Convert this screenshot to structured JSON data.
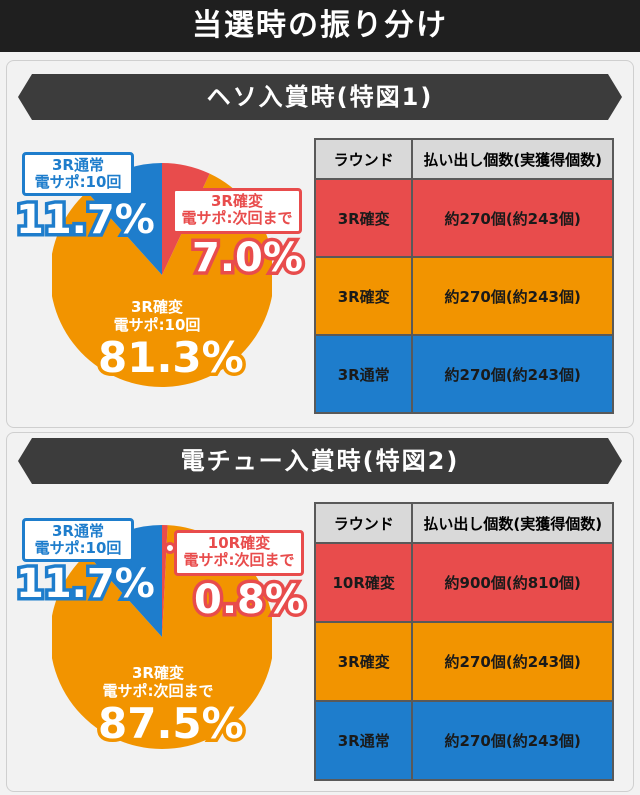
{
  "title": "当選時の振り分け",
  "colors": {
    "blue": "#1e7dcc",
    "red": "#e84c4c",
    "orange": "#f29400"
  },
  "sections": [
    {
      "heading": "ヘソ入賞時(特図1)",
      "chart_data": {
        "type": "pie",
        "slices": [
          {
            "label_line1": "3R通常",
            "label_line2": "電サポ:10回",
            "value": 11.7,
            "value_label": "11.7%",
            "color": "#1e7dcc"
          },
          {
            "label_line1": "3R確変",
            "label_line2": "電サポ:次回まで",
            "value": 7.0,
            "value_label": "7.0%",
            "color": "#e84c4c"
          },
          {
            "label_line1": "3R確変",
            "label_line2": "電サポ:10回",
            "value": 81.3,
            "value_label": "81.3%",
            "color": "#f29400"
          }
        ]
      },
      "table": {
        "headers": [
          "ラウンド",
          "払い出し個数(実獲得個数)"
        ],
        "rows": [
          {
            "round": "3R確変",
            "payout": "約270個(約243個)",
            "color": "#e84c4c"
          },
          {
            "round": "3R確変",
            "payout": "約270個(約243個)",
            "color": "#f29400"
          },
          {
            "round": "3R通常",
            "payout": "約270個(約243個)",
            "color": "#1e7dcc"
          }
        ]
      }
    },
    {
      "heading": "電チュー入賞時(特図2)",
      "chart_data": {
        "type": "pie",
        "slices": [
          {
            "label_line1": "3R通常",
            "label_line2": "電サポ:10回",
            "value": 11.7,
            "value_label": "11.7%",
            "color": "#1e7dcc"
          },
          {
            "label_line1": "10R確変",
            "label_line2": "電サポ:次回まで",
            "value": 0.8,
            "value_label": "0.8%",
            "color": "#e84c4c"
          },
          {
            "label_line1": "3R確変",
            "label_line2": "電サポ:次回まで",
            "value": 87.5,
            "value_label": "87.5%",
            "color": "#f29400"
          }
        ]
      },
      "table": {
        "headers": [
          "ラウンド",
          "払い出し個数(実獲得個数)"
        ],
        "rows": [
          {
            "round": "10R確変",
            "payout": "約900個(約810個)",
            "color": "#e84c4c"
          },
          {
            "round": "3R確変",
            "payout": "約270個(約243個)",
            "color": "#f29400"
          },
          {
            "round": "3R通常",
            "payout": "約270個(約243個)",
            "color": "#1e7dcc"
          }
        ]
      }
    }
  ]
}
